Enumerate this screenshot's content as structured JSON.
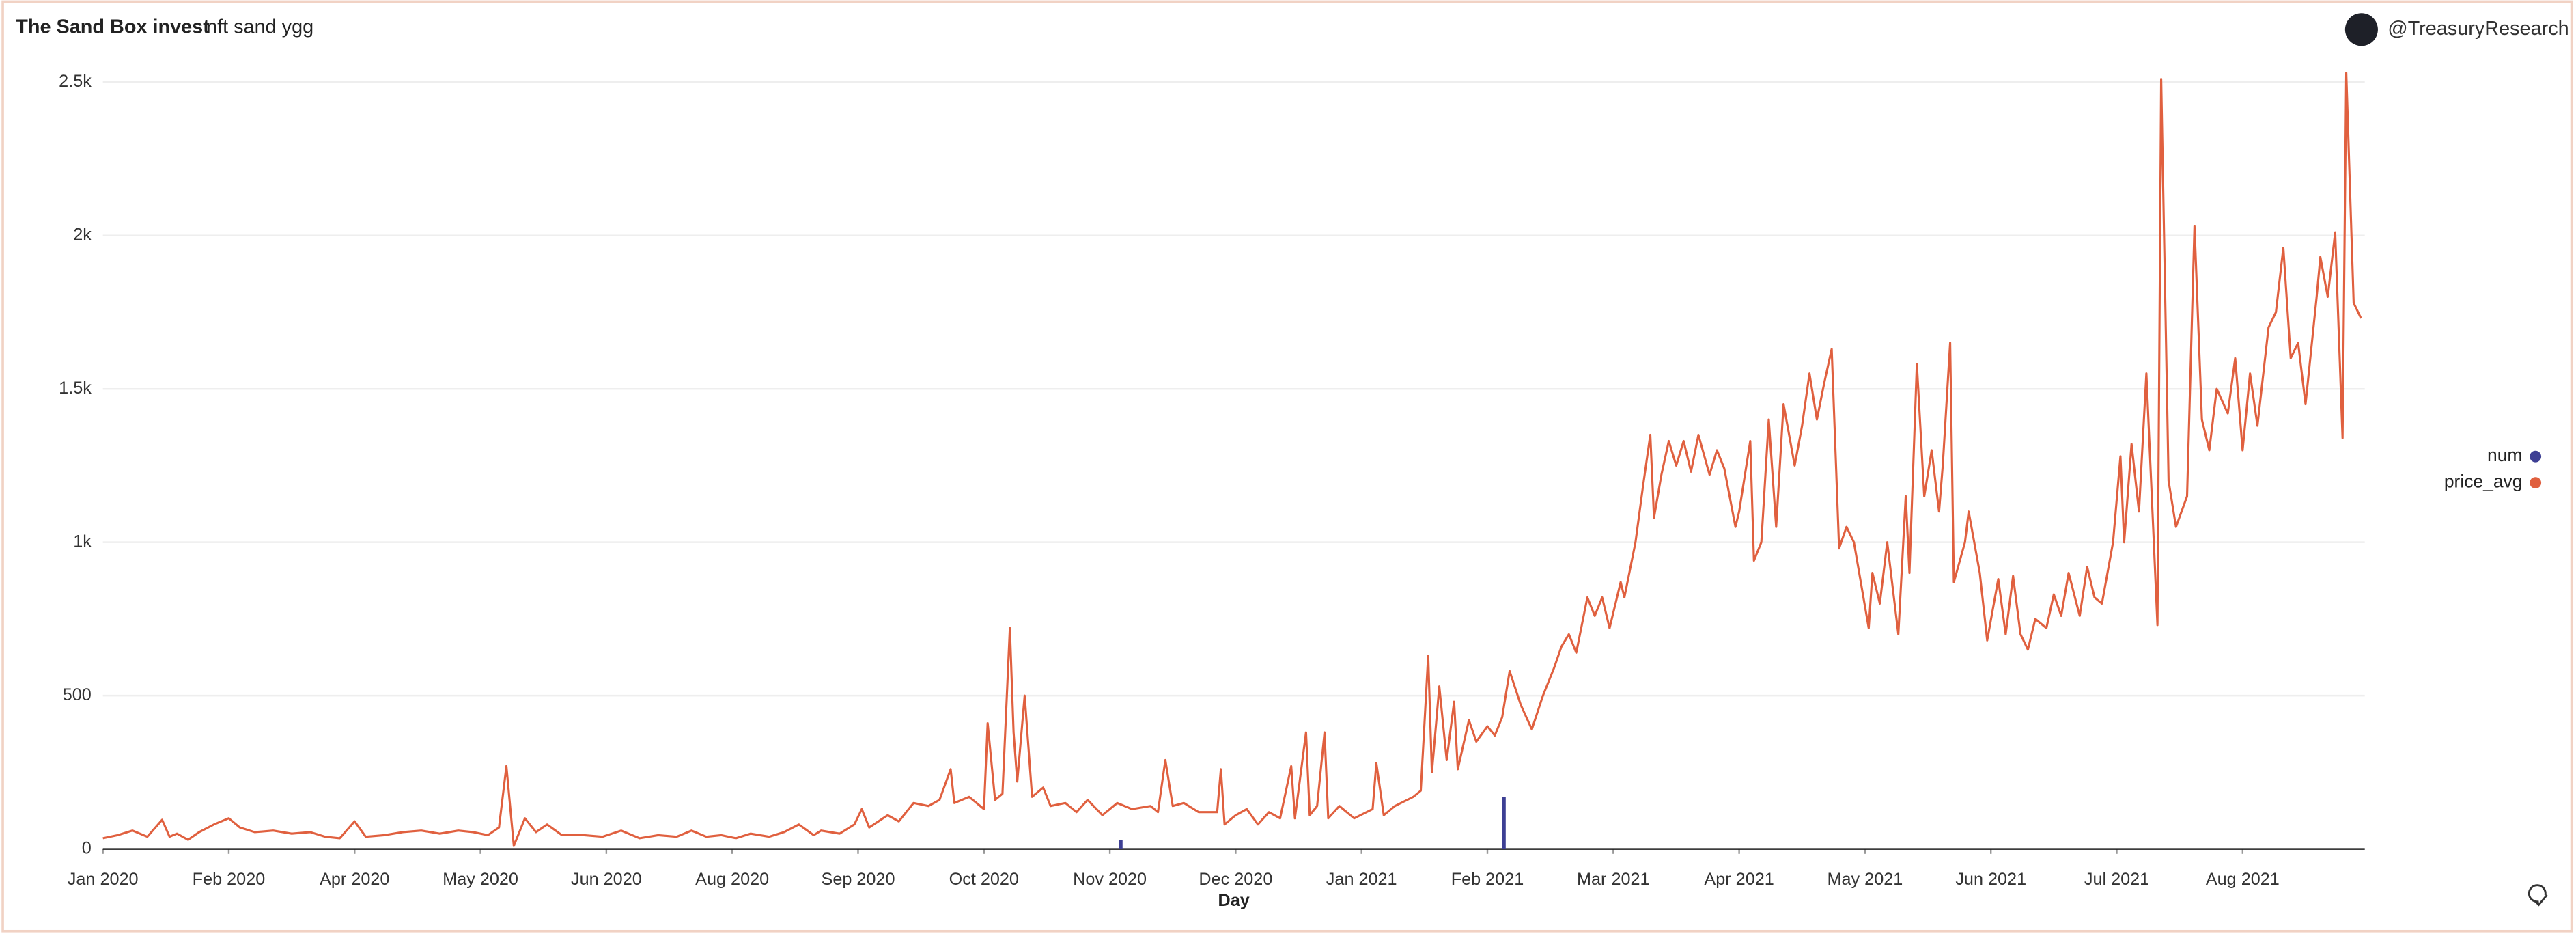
{
  "chart_data": {
    "type": "line",
    "title": "The Sand Box invest",
    "subtitle": "nft sand ygg",
    "brand": "@TreasuryResearch",
    "x_label": "Day",
    "legend": "right",
    "grid": true,
    "xlim": [
      0,
      611
    ],
    "ylim": [
      0,
      2500
    ],
    "xticks": [
      {
        "value": 0,
        "label": "Jan 2020"
      },
      {
        "value": 34,
        "label": "Feb 2020"
      },
      {
        "value": 68,
        "label": "Apr 2020"
      },
      {
        "value": 102,
        "label": "May 2020"
      },
      {
        "value": 136,
        "label": "Jun 2020"
      },
      {
        "value": 170,
        "label": "Aug 2020"
      },
      {
        "value": 204,
        "label": "Sep 2020"
      },
      {
        "value": 238,
        "label": "Oct 2020"
      },
      {
        "value": 272,
        "label": "Nov 2020"
      },
      {
        "value": 306,
        "label": "Dec 2020"
      },
      {
        "value": 340,
        "label": "Jan 2021"
      },
      {
        "value": 374,
        "label": "Feb 2021"
      },
      {
        "value": 408,
        "label": "Mar 2021"
      },
      {
        "value": 442,
        "label": "Apr 2021"
      },
      {
        "value": 476,
        "label": "May 2021"
      },
      {
        "value": 510,
        "label": "Jun 2021"
      },
      {
        "value": 544,
        "label": "Jul 2021"
      },
      {
        "value": 578,
        "label": "Aug 2021"
      }
    ],
    "yticks": [
      0,
      500,
      {
        "value": 1000,
        "label": "1k"
      },
      {
        "value": 1500,
        "label": "1.5k"
      },
      {
        "value": 2000,
        "label": "2k"
      },
      {
        "value": 2500,
        "label": "2.5k"
      }
    ],
    "series": [
      {
        "name": "num",
        "type": "bar",
        "color": "#3d3f94",
        "x": [
          275,
          378.5
        ],
        "values": [
          30,
          170
        ]
      },
      {
        "name": "price_avg",
        "type": "line",
        "color": "#e0603f",
        "x": [
          0,
          4,
          8,
          12,
          16,
          18,
          20,
          23,
          26,
          30,
          34,
          37,
          41,
          46,
          51,
          56,
          60,
          64,
          68,
          71,
          76,
          81,
          86,
          91,
          96,
          100,
          104,
          107,
          109,
          111,
          114,
          117,
          120,
          124,
          130,
          135,
          140,
          145,
          150,
          155,
          159,
          163,
          167,
          171,
          175,
          180,
          184,
          188,
          192,
          194,
          199,
          203,
          205,
          207,
          212,
          215,
          219,
          223,
          226,
          229,
          230,
          234,
          238,
          239,
          241,
          243,
          245,
          246,
          247,
          249,
          251,
          254,
          256,
          260,
          263,
          266,
          270,
          274,
          278,
          283,
          285,
          287,
          289,
          292,
          296,
          301,
          302,
          303,
          306,
          309,
          312,
          315,
          318,
          321,
          322,
          325,
          326,
          328,
          330,
          331,
          334,
          338,
          343,
          344,
          346,
          349,
          354,
          356,
          358,
          359,
          361,
          363,
          365,
          366,
          369,
          371,
          374,
          376,
          378,
          380,
          383,
          386,
          389,
          392,
          394,
          396,
          398,
          401,
          403,
          405,
          407,
          410,
          411,
          414,
          416,
          418,
          419,
          421,
          423,
          425,
          427,
          429,
          431,
          434,
          436,
          438,
          441,
          442,
          445,
          446,
          448,
          450,
          452,
          454,
          457,
          459,
          461,
          463,
          465,
          467,
          469,
          471,
          473,
          477,
          478,
          480,
          482,
          485,
          487,
          488,
          490,
          492,
          494,
          496,
          497,
          499,
          500,
          503,
          504,
          507,
          509,
          512,
          514,
          516,
          518,
          520,
          522,
          525,
          527,
          529,
          531,
          534,
          536,
          538,
          540,
          543,
          545,
          546,
          548,
          550,
          552,
          555,
          556,
          558,
          560,
          563,
          565,
          567,
          569,
          571,
          574,
          576,
          578,
          580,
          582,
          585,
          587,
          589,
          591,
          593,
          595,
          598,
          599,
          601,
          603,
          605,
          606,
          608,
          610
        ],
        "values": [
          35,
          45,
          60,
          40,
          95,
          40,
          50,
          30,
          55,
          80,
          100,
          70,
          55,
          60,
          50,
          55,
          40,
          35,
          90,
          40,
          45,
          55,
          60,
          50,
          60,
          55,
          45,
          70,
          270,
          10,
          100,
          55,
          80,
          45,
          45,
          40,
          60,
          35,
          45,
          40,
          60,
          40,
          45,
          35,
          50,
          40,
          55,
          80,
          45,
          60,
          50,
          80,
          130,
          70,
          110,
          90,
          150,
          140,
          160,
          260,
          150,
          170,
          130,
          410,
          160,
          180,
          720,
          380,
          220,
          500,
          170,
          200,
          140,
          150,
          120,
          160,
          110,
          150,
          130,
          140,
          120,
          290,
          140,
          150,
          120,
          120,
          260,
          80,
          110,
          130,
          80,
          120,
          100,
          270,
          100,
          380,
          110,
          140,
          380,
          100,
          140,
          100,
          130,
          280,
          110,
          140,
          170,
          190,
          630,
          250,
          530,
          290,
          480,
          260,
          420,
          350,
          400,
          370,
          430,
          580,
          470,
          390,
          500,
          590,
          660,
          700,
          640,
          820,
          760,
          820,
          720,
          870,
          820,
          1000,
          1180,
          1350,
          1080,
          1220,
          1330,
          1250,
          1330,
          1230,
          1350,
          1220,
          1300,
          1240,
          1050,
          1100,
          1330,
          940,
          1000,
          1400,
          1050,
          1450,
          1250,
          1380,
          1550,
          1400,
          1520,
          1630,
          980,
          1050,
          1000,
          720,
          900,
          800,
          1000,
          700,
          1150,
          900,
          1580,
          1150,
          1300,
          1100,
          1250,
          1650,
          870,
          1000,
          1100,
          900,
          680,
          880,
          700,
          890,
          700,
          650,
          750,
          720,
          830,
          760,
          900,
          760,
          920,
          820,
          800,
          1000,
          1280,
          1000,
          1320,
          1100,
          1550,
          730,
          2510,
          1200,
          1050,
          1150,
          2030,
          1400,
          1300,
          1500,
          1420,
          1600,
          1300,
          1550,
          1380,
          1700,
          1750,
          1960,
          1600,
          1650,
          1450,
          1800,
          1930,
          1800,
          2010,
          1340,
          2530,
          1780,
          1730
        ]
      }
    ]
  }
}
